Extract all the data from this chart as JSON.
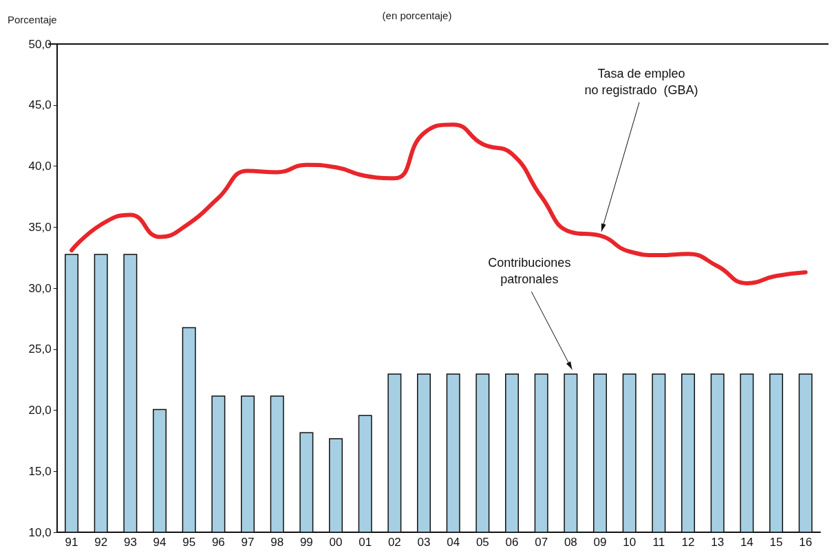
{
  "chart_data": {
    "type": "bar",
    "subtitle": "(en porcentaje)",
    "ylabel": "Porcentaje",
    "categories": [
      "91",
      "92",
      "93",
      "94",
      "95",
      "96",
      "97",
      "98",
      "99",
      "00",
      "01",
      "02",
      "03",
      "04",
      "05",
      "06",
      "07",
      "08",
      "09",
      "10",
      "11",
      "12",
      "13",
      "14",
      "15",
      "16"
    ],
    "series": [
      {
        "name": "Contribuciones\npatronales",
        "color": "#a6cfe3",
        "values": [
          32.8,
          32.8,
          32.8,
          20.1,
          26.8,
          21.2,
          21.2,
          21.2,
          18.2,
          17.7,
          19.6,
          23.0,
          23.0,
          23.0,
          23.0,
          23.0,
          23.0,
          23.0,
          23.0,
          23.0,
          23.0,
          23.0,
          23.0,
          23.0,
          23.0,
          23.0
        ]
      },
      {
        "name": "Tasa de empleo\nno registrado  (GBA)",
        "type": "line",
        "color": "#e8262b",
        "values": [
          33.1,
          35.2,
          36.0,
          34.2,
          35.3,
          37.4,
          39.6,
          39.5,
          40.1,
          39.9,
          39.2,
          39.0,
          42.7,
          43.4,
          41.8,
          41.0,
          37.5,
          34.6,
          34.3,
          33.0,
          32.7,
          32.8,
          31.8,
          30.4,
          31.0,
          31.3
        ]
      }
    ],
    "ylim": [
      10,
      50
    ],
    "yticks": [
      {
        "value": 10,
        "label": "10,0"
      },
      {
        "value": 15,
        "label": "15,0"
      },
      {
        "value": 20,
        "label": "20,0"
      },
      {
        "value": 25,
        "label": "25,0"
      },
      {
        "value": 30,
        "label": "30,0"
      },
      {
        "value": 35,
        "label": "35,0"
      },
      {
        "value": 40,
        "label": "40,0"
      },
      {
        "value": 45,
        "label": "45,0"
      },
      {
        "value": 50,
        "label": "50,0"
      }
    ],
    "grid": false,
    "legend": false,
    "marker": "none"
  }
}
